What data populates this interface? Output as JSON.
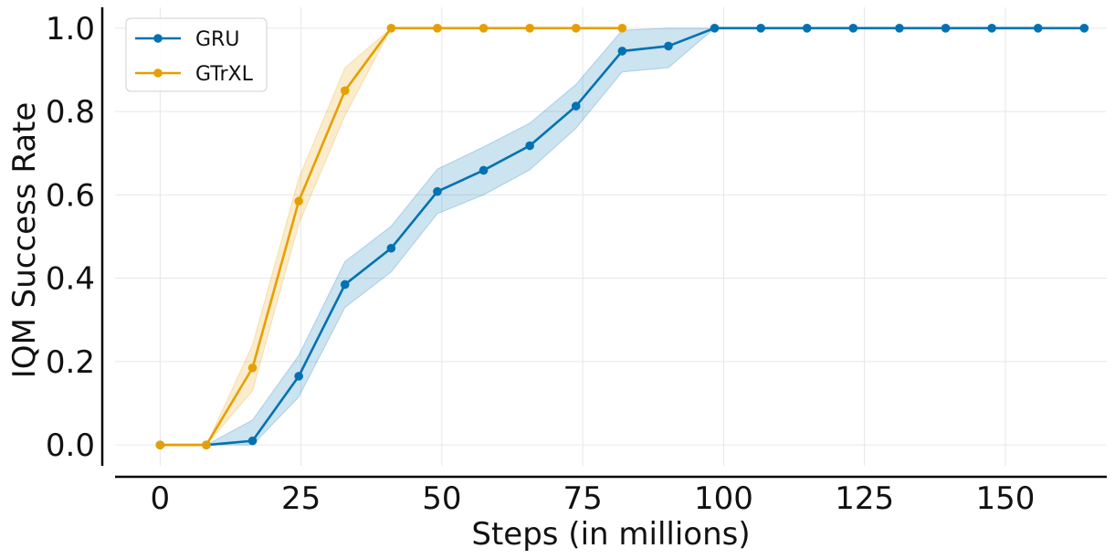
{
  "chart_data": {
    "type": "line",
    "xlabel": "Steps (in millions)",
    "ylabel": "IQM Success Rate",
    "xlim": [
      -8,
      168
    ],
    "ylim": [
      -0.05,
      1.05
    ],
    "x_ticks": [
      0,
      25,
      50,
      75,
      100,
      125,
      150
    ],
    "y_ticks": [
      0.0,
      0.2,
      0.4,
      0.6,
      0.8,
      1.0
    ],
    "x_tick_labels": [
      "0",
      "25",
      "50",
      "75",
      "100",
      "125",
      "150"
    ],
    "y_tick_labels": [
      "0.0",
      "0.2",
      "0.4",
      "0.6",
      "0.8",
      "1.0"
    ],
    "grid": true,
    "legend_position": "top-left",
    "series": [
      {
        "name": "GRU",
        "color": "#0072B2",
        "x": [
          0,
          8.2,
          16.4,
          24.6,
          32.8,
          41,
          49.2,
          57.4,
          65.6,
          73.8,
          82,
          90.2,
          98.4,
          106.6,
          114.8,
          123,
          131.2,
          139.4,
          147.6,
          155.8,
          164
        ],
        "y": [
          0.0,
          0.0,
          0.01,
          0.165,
          0.385,
          0.472,
          0.608,
          0.659,
          0.718,
          0.813,
          0.945,
          0.957,
          1.0,
          1.0,
          1.0,
          1.0,
          1.0,
          1.0,
          1.0,
          1.0,
          1.0
        ],
        "lower": [
          0.0,
          0.0,
          0.0,
          0.115,
          0.33,
          0.415,
          0.555,
          0.6,
          0.66,
          0.76,
          0.895,
          0.905,
          1.0,
          1.0,
          1.0,
          1.0,
          1.0,
          1.0,
          1.0,
          1.0,
          1.0
        ],
        "upper": [
          0.0,
          0.0,
          0.06,
          0.215,
          0.44,
          0.525,
          0.662,
          0.715,
          0.772,
          0.865,
          0.995,
          1.0,
          1.0,
          1.0,
          1.0,
          1.0,
          1.0,
          1.0,
          1.0,
          1.0,
          1.0
        ]
      },
      {
        "name": "GTrXL",
        "color": "#E69F00",
        "x": [
          0,
          8.2,
          16.4,
          24.6,
          32.8,
          41,
          49.2,
          57.4,
          65.6,
          73.8,
          82
        ],
        "y": [
          0.0,
          0.0,
          0.185,
          0.585,
          0.85,
          1.0,
          1.0,
          1.0,
          1.0,
          1.0,
          1.0
        ],
        "lower": [
          0.0,
          0.0,
          0.13,
          0.53,
          0.79,
          1.0,
          1.0,
          1.0,
          1.0,
          1.0,
          1.0
        ],
        "upper": [
          0.0,
          0.0,
          0.24,
          0.64,
          0.905,
          1.0,
          1.0,
          1.0,
          1.0,
          1.0,
          1.0
        ]
      }
    ]
  }
}
